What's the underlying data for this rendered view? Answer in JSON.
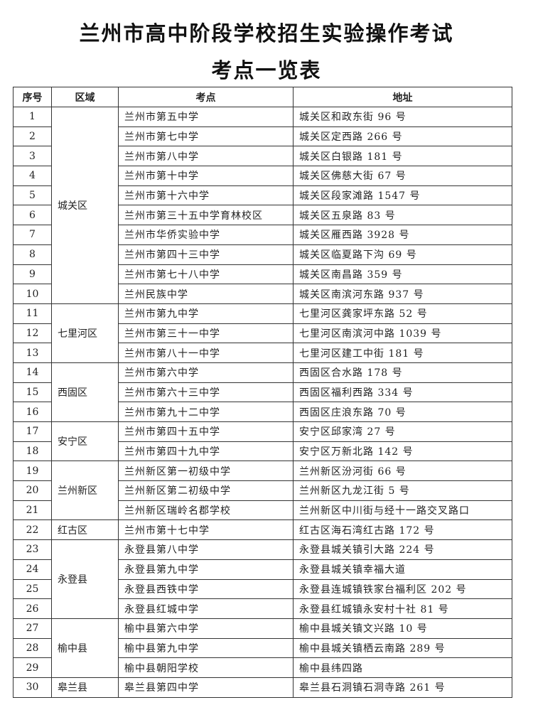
{
  "title": {
    "line1": "兰州市高中阶段学校招生实验操作考试",
    "line2": "考点一览表"
  },
  "table": {
    "headers": [
      "序号",
      "区域",
      "考点",
      "地址"
    ],
    "groups": [
      {
        "region": "城关区",
        "rows": [
          {
            "no": "1",
            "site": "兰州市第五中学",
            "address": "城关区和政东街 96 号"
          },
          {
            "no": "2",
            "site": "兰州市第七中学",
            "address": "城关区定西路 266 号"
          },
          {
            "no": "3",
            "site": "兰州市第八中学",
            "address": "城关区白银路 181 号"
          },
          {
            "no": "4",
            "site": "兰州市第十中学",
            "address": "城关区佛慈大街 67 号"
          },
          {
            "no": "5",
            "site": "兰州市第十六中学",
            "address": "城关区段家滩路 1547 号"
          },
          {
            "no": "6",
            "site": "兰州市第三十五中学育林校区",
            "address": "城关区五泉路 83 号"
          },
          {
            "no": "7",
            "site": "兰州市华侨实验中学",
            "address": "城关区雁西路 3928 号"
          },
          {
            "no": "8",
            "site": "兰州市第四十三中学",
            "address": "城关区临夏路下沟 69 号"
          },
          {
            "no": "9",
            "site": "兰州市第七十八中学",
            "address": "城关区南昌路 359 号"
          },
          {
            "no": "10",
            "site": "兰州民族中学",
            "address": "城关区南滨河东路 937 号"
          }
        ]
      },
      {
        "region": "七里河区",
        "rows": [
          {
            "no": "11",
            "site": "兰州市第九中学",
            "address": "七里河区龚家坪东路 52 号"
          },
          {
            "no": "12",
            "site": "兰州市第三十一中学",
            "address": "七里河区南滨河中路 1039 号"
          },
          {
            "no": "13",
            "site": "兰州市第八十一中学",
            "address": "七里河区建工中街 181 号"
          }
        ]
      },
      {
        "region": "西固区",
        "rows": [
          {
            "no": "14",
            "site": "兰州市第六中学",
            "address": "西固区合水路 178 号"
          },
          {
            "no": "15",
            "site": "兰州市第六十三中学",
            "address": "西固区福利西路 334 号"
          },
          {
            "no": "16",
            "site": "兰州市第九十二中学",
            "address": "西固区庄浪东路 70 号"
          }
        ]
      },
      {
        "region": "安宁区",
        "rows": [
          {
            "no": "17",
            "site": "兰州市第四十五中学",
            "address": "安宁区邱家湾 27 号"
          },
          {
            "no": "18",
            "site": "兰州市第四十九中学",
            "address": "安宁区万新北路 142 号"
          }
        ]
      },
      {
        "region": "兰州新区",
        "rows": [
          {
            "no": "19",
            "site": "兰州新区第一初级中学",
            "address": "兰州新区汾河街 66 号"
          },
          {
            "no": "20",
            "site": "兰州新区第二初级中学",
            "address": "兰州新区九龙江街 5 号"
          },
          {
            "no": "21",
            "site": "兰州新区瑞岭名郡学校",
            "address": "兰州新区中川街与经十一路交叉路口"
          }
        ]
      },
      {
        "region": "红古区",
        "rows": [
          {
            "no": "22",
            "site": "兰州市第十七中学",
            "address": "红古区海石湾红古路 172 号"
          }
        ]
      },
      {
        "region": "永登县",
        "rows": [
          {
            "no": "23",
            "site": "永登县第八中学",
            "address": "永登县城关镇引大路 224 号"
          },
          {
            "no": "24",
            "site": "永登县第九中学",
            "address": "永登县城关镇幸福大道"
          },
          {
            "no": "25",
            "site": "永登县西铁中学",
            "address": "永登县连城镇铁家台福利区 202 号"
          },
          {
            "no": "26",
            "site": "永登县红城中学",
            "address": "永登县红城镇永安村十社 81 号"
          }
        ]
      },
      {
        "region": "榆中县",
        "rows": [
          {
            "no": "27",
            "site": "榆中县第六中学",
            "address": "榆中县城关镇文兴路 10 号"
          },
          {
            "no": "28",
            "site": "榆中县第九中学",
            "address": "榆中县城关镇栖云南路 289 号"
          },
          {
            "no": "29",
            "site": "榆中县朝阳学校",
            "address": "榆中县纬四路"
          }
        ]
      },
      {
        "region": "皋兰县",
        "rows": [
          {
            "no": "30",
            "site": "皋兰县第四中学",
            "address": "皋兰县石洞镇石洞寺路 261 号"
          }
        ]
      }
    ]
  }
}
